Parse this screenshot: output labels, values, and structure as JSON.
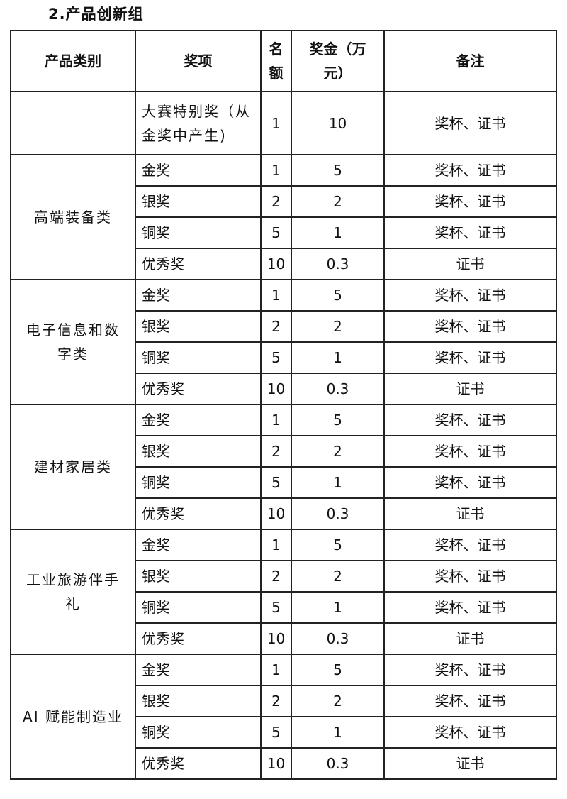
{
  "heading": "2.产品创新组",
  "headers": {
    "category": "产品类别",
    "award": "奖项",
    "quota": "名额",
    "prize": "奖金（万元）",
    "note": "备注"
  },
  "special": {
    "category": "",
    "award": "大赛特别奖（从金奖中产生)",
    "quota": "1",
    "prize": "10",
    "note": "奖杯、证书"
  },
  "groups": [
    {
      "category": "高端装备类",
      "rows": [
        [
          "金奖",
          "1",
          "5",
          "奖杯、证书"
        ],
        [
          "银奖",
          "2",
          "2",
          "奖杯、证书"
        ],
        [
          "铜奖",
          "5",
          "1",
          "奖杯、证书"
        ],
        [
          "优秀奖",
          "10",
          "0.3",
          "证书"
        ]
      ]
    },
    {
      "category": "电子信息和数字类",
      "rows": [
        [
          "金奖",
          "1",
          "5",
          "奖杯、证书"
        ],
        [
          "银奖",
          "2",
          "2",
          "奖杯、证书"
        ],
        [
          "铜奖",
          "5",
          "1",
          "奖杯、证书"
        ],
        [
          "优秀奖",
          "10",
          "0.3",
          "证书"
        ]
      ]
    },
    {
      "category": "建材家居类",
      "rows": [
        [
          "金奖",
          "1",
          "5",
          "奖杯、证书"
        ],
        [
          "银奖",
          "2",
          "2",
          "奖杯、证书"
        ],
        [
          "铜奖",
          "5",
          "1",
          "奖杯、证书"
        ],
        [
          "优秀奖",
          "10",
          "0.3",
          "证书"
        ]
      ]
    },
    {
      "category": "工业旅游伴手礼",
      "rows": [
        [
          "金奖",
          "1",
          "5",
          "奖杯、证书"
        ],
        [
          "银奖",
          "2",
          "2",
          "奖杯、证书"
        ],
        [
          "铜奖",
          "5",
          "1",
          "奖杯、证书"
        ],
        [
          "优秀奖",
          "10",
          "0.3",
          "证书"
        ]
      ]
    },
    {
      "category": "AI 赋能制造业",
      "rows": [
        [
          "金奖",
          "1",
          "5",
          "奖杯、证书"
        ],
        [
          "银奖",
          "2",
          "2",
          "奖杯、证书"
        ],
        [
          "铜奖",
          "5",
          "1",
          "奖杯、证书"
        ],
        [
          "优秀奖",
          "10",
          "0.3",
          "证书"
        ]
      ]
    }
  ]
}
